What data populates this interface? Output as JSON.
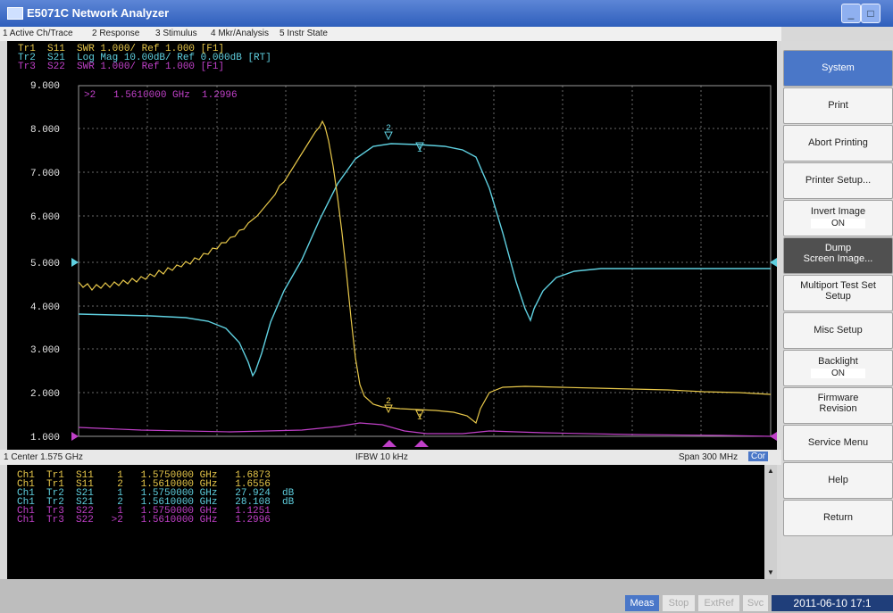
{
  "window": {
    "title": "E5071C Network Analyzer"
  },
  "menu": [
    "1 Active Ch/Trace",
    "2 Response",
    "3 Stimulus",
    "4 Mkr/Analysis",
    "5 Instr State"
  ],
  "trace_header": [
    {
      "label": "Tr1  S11  SWR 1.000/ Ref 1.000 [F1]",
      "color": "#e8c84a"
    },
    {
      "label": "Tr2  S21  Log Mag 10.00dB/ Ref 0.000dB [RT]",
      "color": "#5fd0e0"
    },
    {
      "label": "Tr3  S22  SWR 1.000/ Ref 1.000 [F1]",
      "color": "#c040c8"
    }
  ],
  "active_marker_readout": ">2   1.5610000 GHz  1.2996",
  "y_ticks": [
    "9.000",
    "8.000",
    "7.000",
    "6.000",
    "5.000",
    "4.000",
    "3.000",
    "2.000",
    "1.000"
  ],
  "status": {
    "center": "1 Center 1.575 GHz",
    "ifbw": "IFBW 10 kHz",
    "span": "Span 300 MHz",
    "cor": "Cor"
  },
  "marker_table": [
    {
      "text": "Ch1  Tr1  S11    1   1.5750000 GHz   1.6873",
      "color": "#e8c84a"
    },
    {
      "text": "Ch1  Tr1  S11    2   1.5610000 GHz   1.6556",
      "color": "#e8c84a"
    },
    {
      "text": "Ch1  Tr2  S21    1   1.5750000 GHz   27.924  dB",
      "color": "#5fd0e0"
    },
    {
      "text": "Ch1  Tr2  S21    2   1.5610000 GHz   28.108  dB",
      "color": "#5fd0e0"
    },
    {
      "text": "Ch1  Tr3  S22    1   1.5750000 GHz   1.1251",
      "color": "#c040c8"
    },
    {
      "text": "Ch1  Tr3  S22   >2   1.5610000 GHz   1.2996",
      "color": "#c040c8"
    }
  ],
  "bottom_status": {
    "meas": "Meas",
    "stop": "Stop",
    "extref": "ExtRef",
    "svc": "Svc",
    "datetime": "2011-06-10 17:1"
  },
  "softkeys": {
    "system": "System",
    "print": "Print",
    "abort_printing": "Abort Printing",
    "printer_setup": "Printer Setup...",
    "invert_image": "Invert Image",
    "invert_image_value": "ON",
    "dump": "Dump",
    "dump_sub": "Screen Image...",
    "multiport": "Multiport Test Set",
    "multiport_sub": "Setup",
    "misc_setup": "Misc Setup",
    "backlight": "Backlight",
    "backlight_value": "ON",
    "firmware": "Firmware",
    "firmware_sub": "Revision",
    "service_menu": "Service Menu",
    "help": "Help",
    "return": "Return"
  },
  "colors": {
    "tr1": "#e8c84a",
    "tr2": "#5fd0e0",
    "tr3": "#c040c8",
    "grid": "#6a6a6a"
  }
}
